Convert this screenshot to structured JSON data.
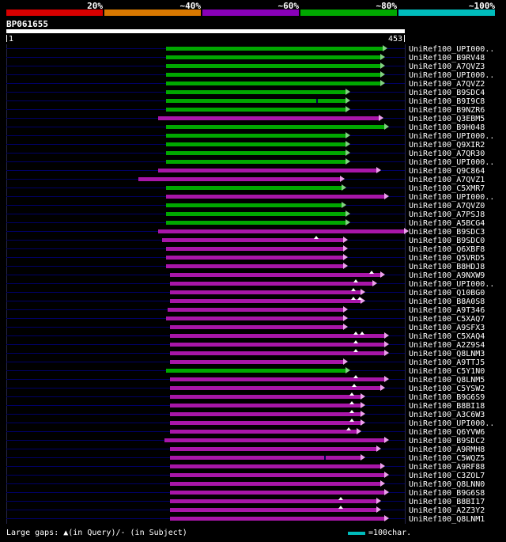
{
  "header": {
    "query_name": "BP061655",
    "axis_start": "1",
    "axis_end": "453"
  },
  "scale": {
    "segments": [
      {
        "label": "20%",
        "color": "#d80000"
      },
      {
        "label": "~40%",
        "color": "#d87800"
      },
      {
        "label": "~60%",
        "color": "#8800b8"
      },
      {
        "label": "~80%",
        "color": "#00a800"
      },
      {
        "label": "~100%",
        "color": "#00bcbc"
      }
    ]
  },
  "footer": {
    "gaps_legend": "Large gaps: ▲(in Query)/- (in Subject)",
    "scale_label": "=100char.",
    "scale_color": "#00bcbc"
  },
  "chart_data": {
    "type": "alignment",
    "axis": {
      "min": 1,
      "max": 453
    },
    "query": {
      "name": "BP061655",
      "start": 1,
      "end": 453
    },
    "colors": {
      "green": {
        "bar": "#00a800",
        "arrow": "#80d080"
      },
      "purple": {
        "bar": "#a816a8",
        "arrow": "#eca0ec"
      }
    },
    "hits": [
      {
        "label": "UniRef100_UPI000..",
        "color": "green",
        "start": 182,
        "end": 435
      },
      {
        "label": "UniRef100_B9RV48",
        "color": "green",
        "start": 182,
        "end": 432
      },
      {
        "label": "UniRef100_A7QVZ3",
        "color": "green",
        "start": 182,
        "end": 432
      },
      {
        "label": "UniRef100_UPI000..",
        "color": "green",
        "start": 182,
        "end": 432
      },
      {
        "label": "UniRef100_A7QVZ2",
        "color": "green",
        "start": 182,
        "end": 432
      },
      {
        "label": "UniRef100_B9SDC4",
        "color": "green",
        "start": 182,
        "end": 392
      },
      {
        "label": "UniRef100_B9I9C8",
        "color": "green",
        "start": 182,
        "end": 392,
        "breaks": [
          354
        ]
      },
      {
        "label": "UniRef100_B9NZR6",
        "color": "green",
        "start": 182,
        "end": 392
      },
      {
        "label": "UniRef100_Q3EBM5",
        "color": "purple",
        "start": 173,
        "end": 430
      },
      {
        "label": "UniRef100_B9H048",
        "color": "green",
        "start": 182,
        "end": 437
      },
      {
        "label": "UniRef100_UPI000..",
        "color": "green",
        "start": 182,
        "end": 392
      },
      {
        "label": "UniRef100_Q9XIR2",
        "color": "green",
        "start": 182,
        "end": 392
      },
      {
        "label": "UniRef100_A7QR30",
        "color": "green",
        "start": 182,
        "end": 392
      },
      {
        "label": "UniRef100_UPI000..",
        "color": "green",
        "start": 182,
        "end": 392
      },
      {
        "label": "UniRef100_Q9C864",
        "color": "purple",
        "start": 173,
        "end": 428
      },
      {
        "label": "UniRef100_A7QVZ1",
        "color": "purple",
        "start": 150,
        "end": 386
      },
      {
        "label": "UniRef100_C5XMR7",
        "color": "green",
        "start": 182,
        "end": 388
      },
      {
        "label": "UniRef100_UPI000..",
        "color": "purple",
        "start": 182,
        "end": 437
      },
      {
        "label": "UniRef100_A7QVZ0",
        "color": "green",
        "start": 182,
        "end": 388
      },
      {
        "label": "UniRef100_A7PSJ8",
        "color": "green",
        "start": 182,
        "end": 392
      },
      {
        "label": "UniRef100_A5BCG4",
        "color": "green",
        "start": 182,
        "end": 392
      },
      {
        "label": "UniRef100_B9SDC3",
        "color": "purple",
        "start": 173,
        "end": 459
      },
      {
        "label": "UniRef100_B9SDC0",
        "color": "purple",
        "start": 177,
        "end": 390,
        "gaps": [
          354
        ]
      },
      {
        "label": "UniRef100_Q6XBF8",
        "color": "purple",
        "start": 182,
        "end": 390
      },
      {
        "label": "UniRef100_Q5VRD5",
        "color": "purple",
        "start": 182,
        "end": 390
      },
      {
        "label": "UniRef100_B8HDJ8",
        "color": "purple",
        "start": 182,
        "end": 390
      },
      {
        "label": "UniRef100_A9NXW9",
        "color": "purple",
        "start": 186,
        "end": 432,
        "gaps": [
          417
        ]
      },
      {
        "label": "UniRef100_UPI000..",
        "color": "purple",
        "start": 186,
        "end": 423,
        "gaps": [
          399
        ]
      },
      {
        "label": "UniRef100_Q10BG0",
        "color": "purple",
        "start": 186,
        "end": 410,
        "gaps": [
          396
        ]
      },
      {
        "label": "UniRef100_B8A0S8",
        "color": "purple",
        "start": 186,
        "end": 410,
        "gaps": [
          396,
          403
        ]
      },
      {
        "label": "UniRef100_A9T346",
        "color": "purple",
        "start": 184,
        "end": 390
      },
      {
        "label": "UniRef100_C5XAQ7",
        "color": "purple",
        "start": 182,
        "end": 390
      },
      {
        "label": "UniRef100_A9SFX3",
        "color": "purple",
        "start": 186,
        "end": 390
      },
      {
        "label": "UniRef100_C5XAQ4",
        "color": "purple",
        "start": 186,
        "end": 437,
        "gaps": [
          399,
          406
        ]
      },
      {
        "label": "UniRef100_A2Z9S4",
        "color": "purple",
        "start": 186,
        "end": 437,
        "gaps": [
          399
        ]
      },
      {
        "label": "UniRef100_Q8LNM3",
        "color": "purple",
        "start": 186,
        "end": 437,
        "gaps": [
          399
        ]
      },
      {
        "label": "UniRef100_A9TTJ5",
        "color": "purple",
        "start": 186,
        "end": 390
      },
      {
        "label": "UniRef100_C5Y1N0",
        "color": "green",
        "start": 182,
        "end": 392
      },
      {
        "label": "UniRef100_Q8LNM5",
        "color": "purple",
        "start": 186,
        "end": 437,
        "gaps": [
          399
        ]
      },
      {
        "label": "UniRef100_C5YSW2",
        "color": "purple",
        "start": 186,
        "end": 432,
        "gaps": [
          397
        ]
      },
      {
        "label": "UniRef100_B9G6S9",
        "color": "purple",
        "start": 186,
        "end": 410,
        "gaps": [
          394
        ]
      },
      {
        "label": "UniRef100_B8BI18",
        "color": "purple",
        "start": 186,
        "end": 410,
        "gaps": [
          394
        ]
      },
      {
        "label": "UniRef100_A3C6W3",
        "color": "purple",
        "start": 186,
        "end": 410,
        "gaps": [
          394
        ]
      },
      {
        "label": "UniRef100_UPI000..",
        "color": "purple",
        "start": 186,
        "end": 410,
        "gaps": [
          394
        ]
      },
      {
        "label": "UniRef100_Q6YVW6",
        "color": "purple",
        "start": 186,
        "end": 405,
        "gaps": [
          391
        ]
      },
      {
        "label": "UniRef100_B9SDC2",
        "color": "purple",
        "start": 180,
        "end": 437
      },
      {
        "label": "UniRef100_A9RMH8",
        "color": "purple",
        "start": 186,
        "end": 428
      },
      {
        "label": "UniRef100_C5WQZ5",
        "color": "purple",
        "start": 186,
        "end": 410,
        "breaks": [
          363
        ]
      },
      {
        "label": "UniRef100_A9RF88",
        "color": "purple",
        "start": 186,
        "end": 432
      },
      {
        "label": "UniRef100_C3ZOL7",
        "color": "purple",
        "start": 186,
        "end": 437
      },
      {
        "label": "UniRef100_Q8LNN0",
        "color": "purple",
        "start": 186,
        "end": 432
      },
      {
        "label": "UniRef100_B9G6S8",
        "color": "purple",
        "start": 186,
        "end": 437
      },
      {
        "label": "UniRef100_B8BI17",
        "color": "purple",
        "start": 186,
        "end": 428,
        "gaps": [
          382
        ]
      },
      {
        "label": "UniRef100_A2Z3Y2",
        "color": "purple",
        "start": 186,
        "end": 428,
        "gaps": [
          382
        ]
      },
      {
        "label": "UniRef100_Q8LNM1",
        "color": "purple",
        "start": 186,
        "end": 437
      }
    ]
  }
}
